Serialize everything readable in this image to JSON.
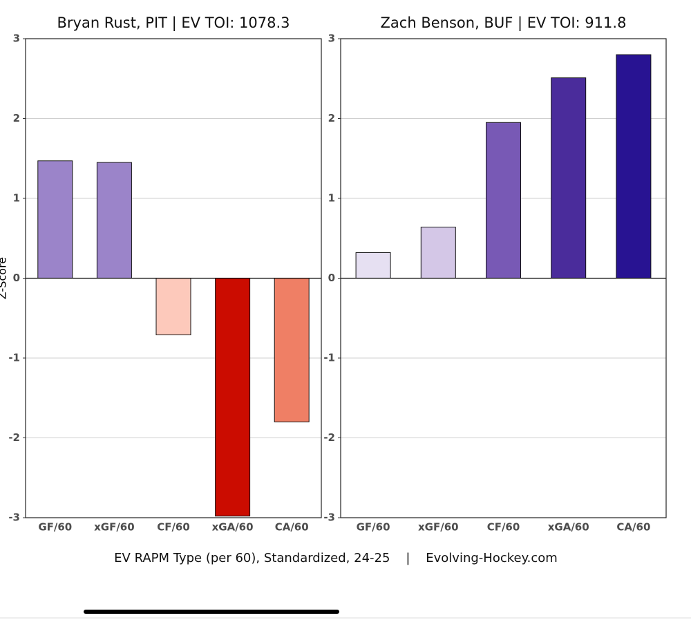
{
  "chart_data": [
    {
      "type": "bar",
      "title": "Bryan Rust, PIT  |  EV TOI: 1078.3",
      "ylabel": "Z-Score",
      "categories": [
        "GF/60",
        "xGF/60",
        "CF/60",
        "xGA/60",
        "CA/60"
      ],
      "values": [
        1.47,
        1.45,
        -0.71,
        -2.98,
        -1.8
      ],
      "colors": [
        "#9b84c9",
        "#9b84c9",
        "#fdc9bb",
        "#cb0c00",
        "#ef7f65"
      ],
      "ylim": [
        -3,
        3
      ],
      "yticks": [
        -3,
        -2,
        -1,
        0,
        1,
        2,
        3
      ],
      "grid": true
    },
    {
      "type": "bar",
      "title": "Zach Benson, BUF  |  EV TOI: 911.8",
      "categories": [
        "GF/60",
        "xGF/60",
        "CF/60",
        "xGA/60",
        "CA/60"
      ],
      "values": [
        0.32,
        0.64,
        1.95,
        2.51,
        2.8
      ],
      "colors": [
        "#e6e0f2",
        "#d4c7e7",
        "#7859b5",
        "#4a2c9b",
        "#281392"
      ],
      "ylim": [
        -3,
        3
      ],
      "yticks": [
        -3,
        -2,
        -1,
        0,
        1,
        2,
        3
      ],
      "grid": true
    }
  ],
  "caption": "EV RAPM Type (per 60), Standardized, 24-25    |    Evolving-Hockey.com"
}
